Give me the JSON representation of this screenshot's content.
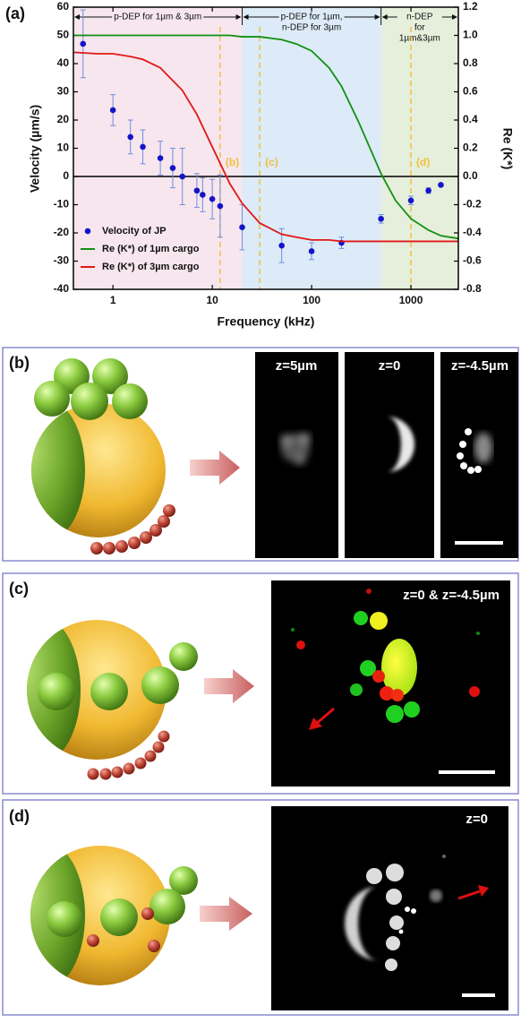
{
  "chart_data": {
    "type": "scatter",
    "panel_label": "(a)",
    "x_label": "Frequency (kHz)",
    "y_label": "Velocity (µm/s)",
    "y2_label": "Re (K*)",
    "x_log": true,
    "xlim": [
      0.4,
      3000
    ],
    "xticks": [
      1,
      10,
      100,
      1000
    ],
    "ylim": [
      -40,
      60
    ],
    "yticks": [
      -40,
      -30,
      -20,
      -10,
      0,
      10,
      20,
      30,
      40,
      50,
      60
    ],
    "y2lim": [
      -0.8,
      1.2
    ],
    "y2ticks": [
      -0.8,
      -0.6,
      -0.4,
      -0.2,
      {
        "value": 0,
        "label": "0.0"
      },
      0.2,
      0.4,
      0.6,
      0.8,
      {
        "value": 1,
        "label": "1.0"
      },
      1.2
    ],
    "zero_line": true,
    "legend": "lower left",
    "regions": [
      {
        "label": [
          "p-DEP for 1µm & 3µm"
        ],
        "from": 0.4,
        "to": 20,
        "color": "#f7e6ee"
      },
      {
        "label": [
          "p-DEP for 1µm,",
          "n-DEP for 3µm"
        ],
        "from": 20,
        "to": 500,
        "color": "#dcebf7"
      },
      {
        "label": [
          "n-DEP",
          "for",
          "1µm&3µm"
        ],
        "from": 500,
        "to": 3000,
        "color": "#e6efdb"
      }
    ],
    "markers": [
      {
        "x": 12,
        "label": "(b)"
      },
      {
        "x": 30,
        "label": "(c)"
      },
      {
        "x": 1000,
        "label": "(d)"
      }
    ],
    "marker_color": "#f0c040",
    "series": [
      {
        "name": "Velocity of JP",
        "kind": "scatter",
        "color": "#1414c8",
        "x": [
          0.5,
          1,
          1.5,
          2,
          3,
          4,
          5,
          7,
          8,
          10,
          12,
          20,
          50,
          100,
          200,
          500,
          1000,
          1500,
          2000
        ],
        "values": [
          47,
          23.5,
          14,
          10.5,
          6.5,
          3,
          0,
          -5,
          -6.5,
          -8,
          -10.5,
          -18,
          -24.5,
          -26.5,
          -23.5,
          -15,
          -8.5,
          -5,
          -3
        ],
        "errors": [
          12,
          5.5,
          6,
          6,
          6,
          7,
          10,
          6,
          6,
          7,
          11,
          8,
          6,
          3,
          2,
          1.5,
          1.5,
          1,
          0.5
        ]
      },
      {
        "name": "Re (K*) of 1µm cargo",
        "kind": "line",
        "axis": "y2",
        "color": "#129012",
        "x": [
          0.4,
          0.7,
          1,
          1.5,
          2,
          3,
          5,
          7,
          10,
          15,
          20,
          30,
          50,
          70,
          100,
          150,
          200,
          300,
          500,
          700,
          1000,
          1500,
          2000,
          3000
        ],
        "values": [
          1.0,
          1.0,
          1.0,
          1.0,
          1.0,
          1.0,
          1.0,
          1.0,
          1.0,
          1.0,
          0.99,
          0.99,
          0.97,
          0.94,
          0.89,
          0.77,
          0.64,
          0.38,
          0.02,
          -0.17,
          -0.3,
          -0.38,
          -0.42,
          -0.44
        ]
      },
      {
        "name": "Re (K*) of 3µm cargo",
        "kind": "line",
        "axis": "y2",
        "color": "#e01818",
        "x": [
          0.4,
          0.7,
          1,
          1.5,
          2,
          3,
          5,
          7,
          10,
          15,
          20,
          30,
          50,
          70,
          100,
          150,
          200,
          300,
          500,
          700,
          1000,
          1500,
          2000,
          3000
        ],
        "values": [
          0.88,
          0.87,
          0.87,
          0.85,
          0.83,
          0.77,
          0.61,
          0.44,
          0.21,
          -0.05,
          -0.19,
          -0.33,
          -0.41,
          -0.43,
          -0.45,
          -0.45,
          -0.46,
          -0.46,
          -0.46,
          -0.46,
          -0.46,
          -0.46,
          -0.46,
          -0.46
        ]
      }
    ]
  },
  "panels": [
    {
      "label": "(b)",
      "captions": [
        "z=5µm",
        "z=0",
        "z=-4.5µm"
      ]
    },
    {
      "label": "(c)",
      "captions": [
        "z=0 & z=-4.5µm"
      ]
    },
    {
      "label": "(d)",
      "captions": [
        "z=0"
      ]
    }
  ]
}
